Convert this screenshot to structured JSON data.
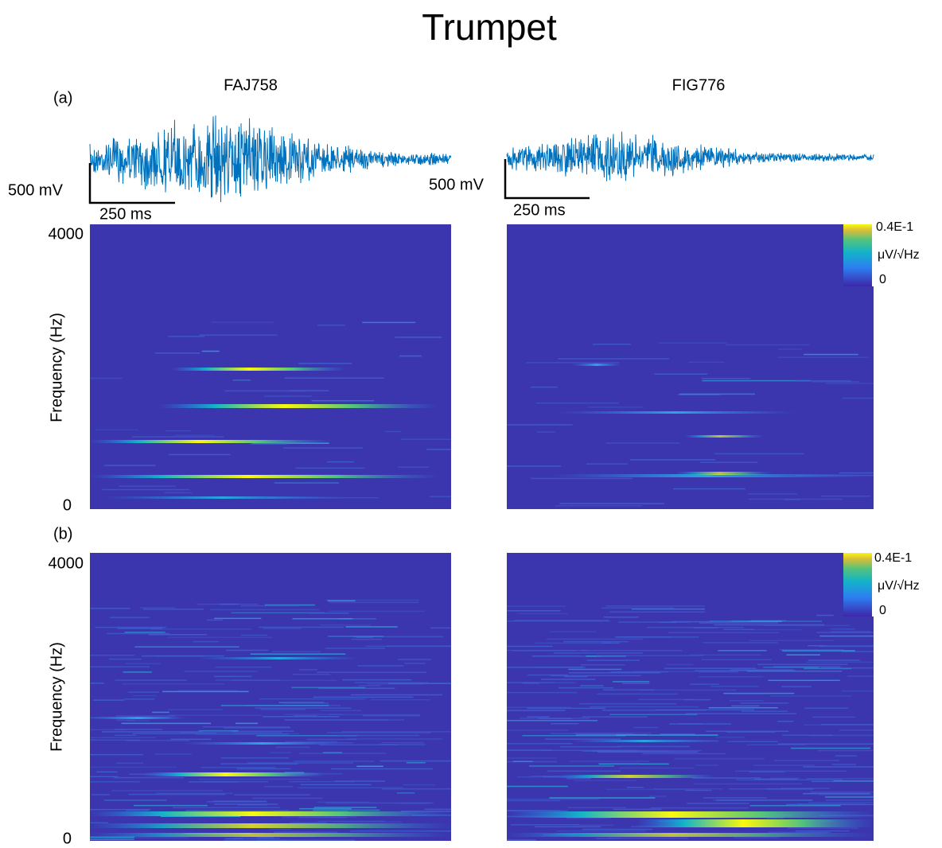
{
  "title": "Trumpet",
  "columns": [
    "FAJ758",
    "FIG776"
  ],
  "scale_bars": {
    "voltage": "500 mV",
    "time": "250 ms"
  },
  "panels": [
    {
      "label": "(a)",
      "y_axis": {
        "label": "Frequency (Hz)",
        "ticks": [
          "4000",
          "0"
        ]
      },
      "colorbar": {
        "max": "0.4E-1",
        "unit": "μV/√Hz",
        "min": "0"
      }
    },
    {
      "label": "(b)",
      "y_axis": {
        "label": "Frequency (Hz)",
        "ticks": [
          "4000",
          "0"
        ]
      },
      "colorbar": {
        "max": "0.4E-1",
        "unit": "μV/√Hz",
        "min": "0"
      }
    }
  ]
}
